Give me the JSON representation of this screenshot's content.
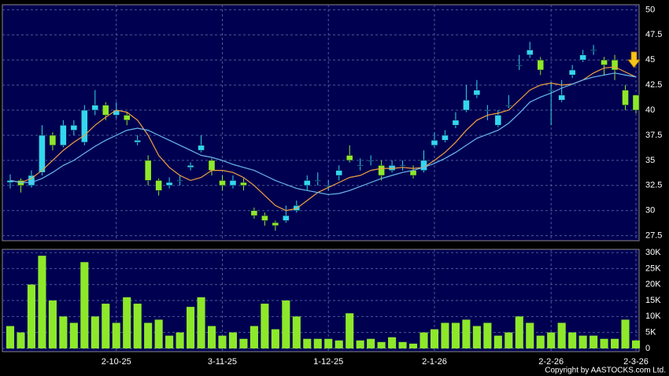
{
  "chart_data": {
    "type": "candlestick",
    "categories": [
      null,
      null,
      null,
      null,
      null,
      null,
      null,
      null,
      null,
      null,
      "2-10-25",
      null,
      null,
      null,
      null,
      null,
      null,
      null,
      null,
      null,
      "3-11-25",
      null,
      null,
      null,
      null,
      null,
      null,
      null,
      null,
      null,
      "1-12-25",
      null,
      null,
      null,
      null,
      null,
      null,
      null,
      null,
      null,
      "2-1-26",
      null,
      null,
      null,
      null,
      null,
      null,
      null,
      null,
      null,
      null,
      "2-2-26",
      null,
      null,
      null,
      null,
      null,
      null,
      null,
      "2-3-26"
    ],
    "open": [
      32.8,
      33,
      32.5,
      33.8,
      37.5,
      36.5,
      38,
      36.8,
      40,
      40.5,
      39.5,
      39.5,
      36.8,
      35,
      33,
      32.5,
      33,
      34.3,
      36,
      35,
      33,
      32.5,
      32.8,
      30,
      29.5,
      28.8,
      29,
      30,
      32.5,
      33,
      32.5,
      33.5,
      35.5,
      34.5,
      35,
      34.5,
      34,
      34.5,
      34,
      34,
      36.5,
      37,
      38.5,
      40,
      41.5,
      40,
      38.5,
      40.5,
      44.5,
      45.5,
      45,
      42,
      41,
      43.5,
      45,
      46,
      45,
      45,
      42,
      41.5
    ],
    "high": [
      33.6,
      33.2,
      34,
      38.5,
      37.8,
      39,
      39,
      40.5,
      42,
      40.8,
      40.8,
      39.8,
      37.5,
      35.5,
      33.2,
      33.3,
      33.5,
      34.8,
      37.5,
      35.2,
      33.5,
      33.5,
      33.2,
      30.3,
      29.8,
      29,
      30.5,
      31,
      33.5,
      33.8,
      33,
      34.5,
      36.5,
      35.2,
      35.5,
      35,
      35,
      35,
      34.5,
      36,
      37.8,
      38,
      39.8,
      42.5,
      43,
      40.5,
      40,
      41.5,
      45.5,
      46.8,
      45.3,
      42.8,
      43,
      44.5,
      46,
      46.5,
      45.3,
      45.5,
      42.5,
      41.5
    ],
    "low": [
      32.2,
      31.8,
      32.3,
      33.5,
      36,
      36.3,
      37.5,
      36.5,
      39.5,
      39,
      39.2,
      38.5,
      36.5,
      32.5,
      31.5,
      32.2,
      32.5,
      34,
      35.8,
      33.5,
      32,
      32.2,
      32,
      29.2,
      28.5,
      28,
      28.8,
      29.8,
      32,
      32.5,
      32,
      33,
      34.8,
      34,
      34.5,
      33,
      33.8,
      34,
      33.2,
      33.8,
      36.3,
      36.8,
      38.2,
      39.8,
      41.2,
      39,
      38.3,
      40.2,
      44,
      45.2,
      43.5,
      38.5,
      40.8,
      43.2,
      44.8,
      45.5,
      43.5,
      43,
      40,
      39.7
    ],
    "close": [
      33,
      32.5,
      33.5,
      37.5,
      36.5,
      38.5,
      38.5,
      40,
      40.5,
      39.5,
      40,
      39,
      37,
      33,
      32,
      32.8,
      33,
      34.5,
      36.5,
      34,
      32.5,
      33,
      32.5,
      29.5,
      29,
      28.5,
      29.5,
      30.5,
      33,
      33,
      32.5,
      34,
      35,
      34.5,
      35,
      33.5,
      34.5,
      34.5,
      33.5,
      35,
      37,
      37.5,
      39,
      41,
      42,
      40,
      39.5,
      40.5,
      44.5,
      46,
      44,
      42,
      41.5,
      44,
      45.5,
      46,
      44.5,
      44,
      40.5,
      40
    ],
    "up_color": "#33d6f0",
    "down_color": "#8ee82a",
    "moving_averages": [
      {
        "color": "#f0a040",
        "values": [
          33,
          32.8,
          33.2,
          34,
          35,
          36,
          36.8,
          37.5,
          38.5,
          39.3,
          40,
          39.8,
          39,
          37.5,
          35.5,
          34.3,
          33.5,
          33,
          33.3,
          34,
          34,
          33.8,
          33.3,
          32.5,
          31.5,
          30.5,
          30,
          30.2,
          31,
          31.8,
          32.3,
          32.8,
          33.3,
          33.5,
          34,
          34.2,
          34.2,
          34.3,
          34.2,
          34.3,
          35,
          35.8,
          36.8,
          38,
          39,
          39.5,
          39.7,
          40,
          41,
          42,
          42.5,
          42.7,
          42.5,
          42.6,
          43,
          43.7,
          44.2,
          44.3,
          43.8,
          43.3
        ]
      },
      {
        "color": "#6ab8f0",
        "values": [
          33,
          32.8,
          32.8,
          33.2,
          33.8,
          34.5,
          35,
          35.7,
          36.4,
          37,
          37.5,
          38,
          38.2,
          38,
          37.5,
          37,
          36.5,
          36,
          35.5,
          35.3,
          35,
          34.6,
          34.3,
          34,
          33.5,
          33,
          32.6,
          32.2,
          32,
          31.8,
          31.6,
          31.7,
          32,
          32.4,
          32.8,
          33.2,
          33.5,
          33.8,
          34,
          34.3,
          34.7,
          35.2,
          35.8,
          36.5,
          37.2,
          37.6,
          38,
          38.7,
          39.7,
          40.8,
          41.3,
          41.7,
          42.2,
          42.6,
          43,
          43.3,
          43.5,
          43.7,
          43.5,
          43.3
        ]
      }
    ],
    "ylim": [
      27,
      50.5
    ],
    "yticks": [
      27.5,
      30,
      32.5,
      35,
      37.5,
      40,
      42.5,
      45,
      47.5,
      50
    ],
    "grid": true,
    "volume": {
      "color": "#8ee82a",
      "values": [
        7000,
        5000,
        20000,
        29000,
        15000,
        10000,
        8000,
        27000,
        10000,
        14000,
        8000,
        16000,
        14000,
        8000,
        9000,
        4000,
        5000,
        13000,
        16000,
        7000,
        4000,
        5000,
        3000,
        7000,
        14000,
        6000,
        15000,
        10000,
        3000,
        3000,
        3000,
        2500,
        11000,
        2500,
        3000,
        2000,
        3500,
        2000,
        1500,
        5000,
        6000,
        8000,
        8000,
        9000,
        7000,
        8000,
        4000,
        5000,
        10000,
        8000,
        4000,
        5000,
        8000,
        5000,
        4000,
        4000,
        3000,
        3000,
        9000,
        2500
      ],
      "ylim": [
        -1000,
        31000
      ],
      "yticks": [
        0,
        {
          "value": 5000,
          "label": "5K"
        },
        {
          "value": 10000,
          "label": "10K"
        },
        {
          "value": 15000,
          "label": "15K"
        },
        {
          "value": 20000,
          "label": "20K"
        },
        {
          "value": 25000,
          "label": "25K"
        },
        {
          "value": 30000,
          "label": "30K"
        }
      ]
    },
    "footer": "Copyright by AASTOCKS.com Ltd."
  }
}
